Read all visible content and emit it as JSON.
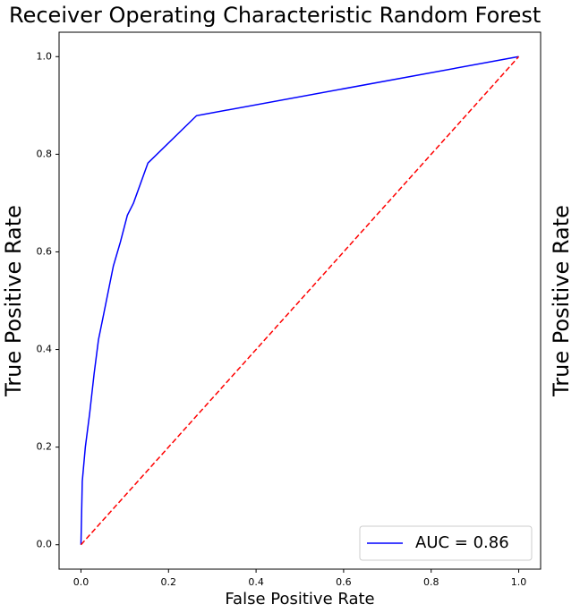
{
  "chart_data": {
    "type": "line",
    "title": "Receiver Operating Characteristic Random Forest",
    "xlabel": "False Positive Rate",
    "ylabel": "True Positive Rate",
    "series": [
      {
        "name": "AUC = 0.86",
        "color": "#0000ff",
        "x": [
          0,
          0.003,
          0.01,
          0.02,
          0.03,
          0.04,
          0.05,
          0.074,
          0.09,
          0.106,
          0.12,
          0.153,
          0.264,
          1
        ],
        "values": [
          0,
          0.13,
          0.2,
          0.27,
          0.35,
          0.42,
          0.464,
          0.571,
          0.62,
          0.675,
          0.7,
          0.782,
          0.879,
          1
        ]
      },
      {
        "color": "#ff0000",
        "dashed": true,
        "x": [
          0,
          1
        ],
        "values": [
          0,
          1
        ]
      }
    ],
    "xlim": [
      -0.05,
      1.05
    ],
    "ylim": [
      -0.05,
      1.05
    ],
    "xticks": [
      {
        "value": 0,
        "label": "0.0"
      },
      0.2,
      0.4,
      0.6,
      0.8,
      {
        "value": 1,
        "label": "1.0"
      }
    ],
    "yticks": [
      {
        "value": 0,
        "label": "0.0"
      },
      0.2,
      0.4,
      0.6,
      0.8,
      {
        "value": 1,
        "label": "1.0"
      }
    ],
    "legend": "lower right",
    "grid": false
  }
}
